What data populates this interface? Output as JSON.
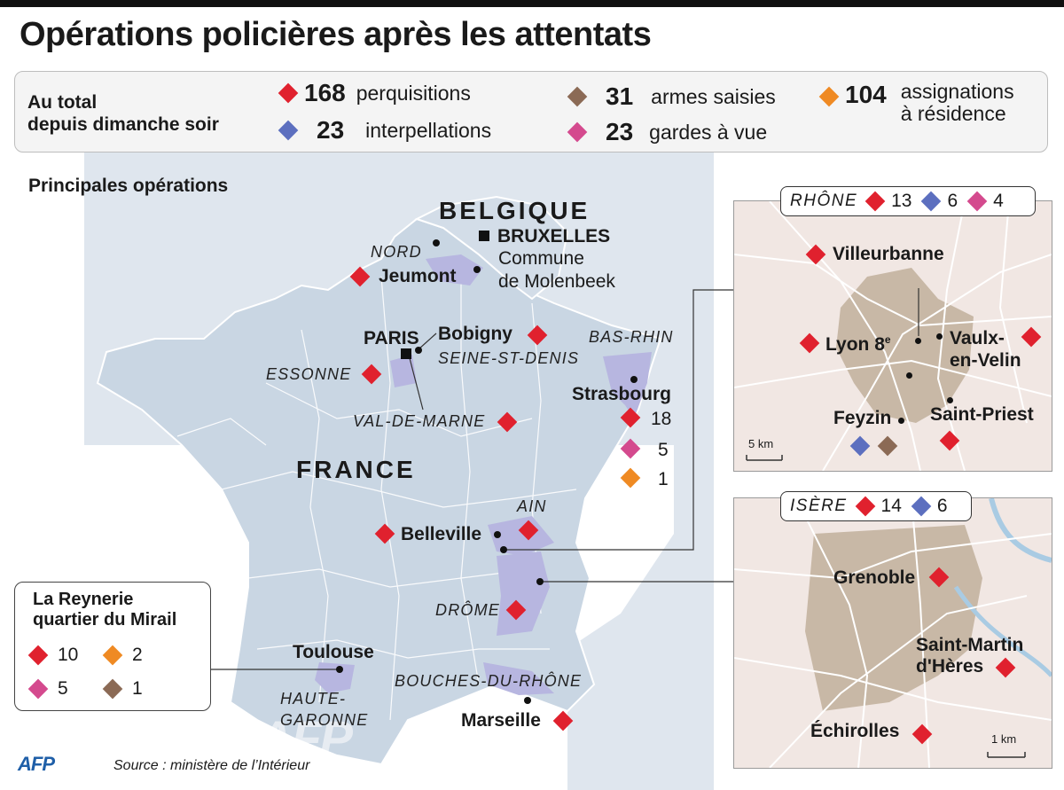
{
  "title": "Opérations policières après les attentats",
  "colors": {
    "perquisitions": "#e0212e",
    "interpellations": "#5c6fbf",
    "armes": "#8b6a55",
    "gardes": "#d44a8e",
    "assignations": "#ef8a23",
    "land": "#c9d6e3",
    "sea": "#ffffff",
    "highlight": "#b7b6e0",
    "inset_bg": "#f1e7e3",
    "urban": "#c8b8a6"
  },
  "summary": {
    "label_line1": "Au total",
    "label_line2": "depuis dimanche soir",
    "perquisitions": {
      "value": "168",
      "label": "perquisitions"
    },
    "interpellations": {
      "value": "23",
      "label": "interpellations"
    },
    "armes": {
      "value": "31",
      "label": "armes saisies"
    },
    "gardes": {
      "value": "23",
      "label": "gardes à vue"
    },
    "assignations": {
      "value": "104",
      "label_line1": "assignations",
      "label_line2": "à résidence"
    }
  },
  "map": {
    "subtitle": "Principales opérations",
    "countries": {
      "belgique": "BELGIQUE",
      "france": "FRANCE"
    },
    "departments": {
      "nord": "NORD",
      "essonne": "ESSONNE",
      "seine_st_denis": "SEINE-ST-DENIS",
      "val_de_marne": "VAL-DE-MARNE",
      "bas_rhin": "BAS-RHIN",
      "ain": "AIN",
      "drome": "DRÔME",
      "bouches_du_rhone": "BOUCHES-DU-RHÔNE",
      "haute_garonne_1": "HAUTE-",
      "haute_garonne_2": "GARONNE"
    },
    "cities": {
      "bruxelles": "BRUXELLES",
      "molenbeek_1": "Commune",
      "molenbeek_2": "de Molenbeek",
      "jeumont": "Jeumont",
      "paris": "PARIS",
      "bobigny": "Bobigny",
      "strasbourg": "Strasbourg",
      "belleville": "Belleville",
      "toulouse": "Toulouse",
      "marseille": "Marseille"
    },
    "strasbourg_counts": {
      "perquisitions": "18",
      "gardes": "5",
      "assignations": "1"
    }
  },
  "rhone": {
    "name": "RHÔNE",
    "perquisitions": "13",
    "interpellations": "6",
    "gardes": "4",
    "cities": {
      "villeurbanne": "Villeurbanne",
      "lyon8": "Lyon 8",
      "lyon8_sup": "e",
      "vaulx_1": "Vaulx-",
      "vaulx_2": "en-Velin",
      "feyzin": "Feyzin",
      "saint_priest": "Saint-Priest"
    },
    "scale": "5 km"
  },
  "isere": {
    "name": "ISÈRE",
    "perquisitions": "14",
    "interpellations": "6",
    "cities": {
      "grenoble": "Grenoble",
      "smh_1": "Saint-Martin",
      "smh_2": "d'Hères",
      "echirolles": "Échirolles"
    },
    "scale": "1 km"
  },
  "reynerie": {
    "title_1": "La Reynerie",
    "title_2": "quartier du Mirail",
    "perquisitions": "10",
    "assignations": "2",
    "gardes": "5",
    "armes": "1"
  },
  "footer": {
    "logo": "AFP",
    "source": "Source : ministère de l’Intérieur"
  },
  "watermark": "AFP"
}
